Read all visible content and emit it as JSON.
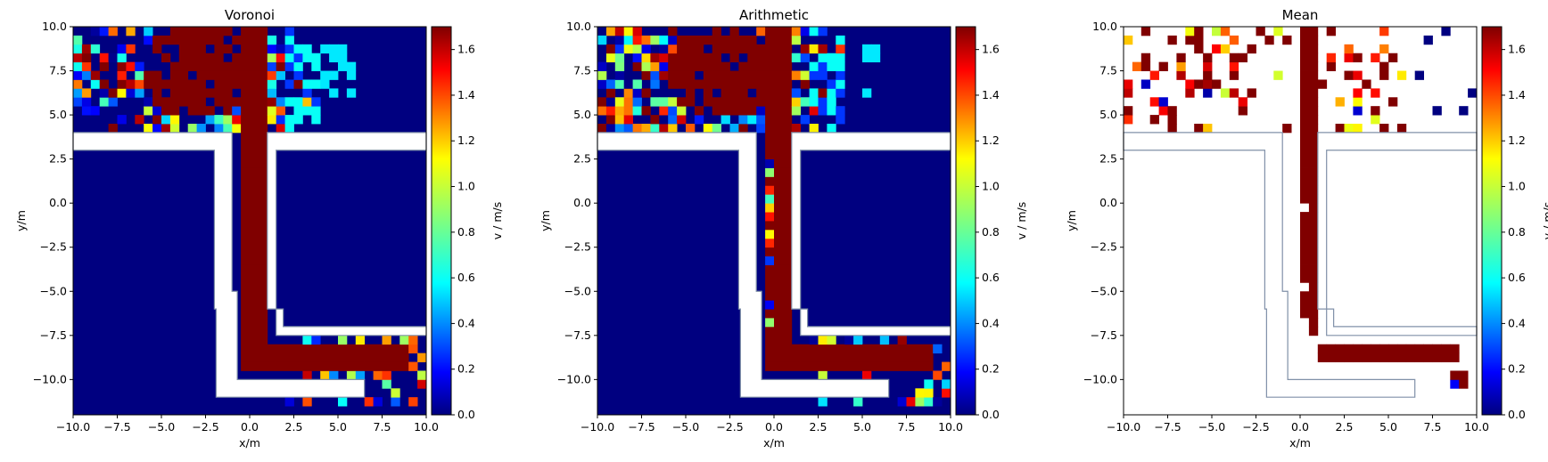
{
  "figure": {
    "colormap": "jet",
    "wall_color": "#8090a8",
    "panels": [
      {
        "title": "Voronoi",
        "xlabel": "x/m",
        "ylabel": "y/m",
        "cbar_label": "v / m/s",
        "mode": "voronoi"
      },
      {
        "title": "Arithmetic",
        "xlabel": "x/m",
        "ylabel": "y/m",
        "cbar_label": "v / m/s",
        "mode": "arithmetic"
      },
      {
        "title": "Mean",
        "xlabel": "x/m",
        "ylabel": "y/m",
        "cbar_label": "v / m/s",
        "mode": "mean"
      }
    ]
  },
  "chart_data": [
    {
      "type": "heatmap",
      "title": "Voronoi",
      "xlabel": "x/m",
      "ylabel": "y/m",
      "xlim": [
        -10,
        10
      ],
      "ylim": [
        -12,
        10
      ],
      "x_ticks": [
        "−10.0",
        "−7.5",
        "−5.0",
        "−2.5",
        "0.0",
        "2.5",
        "5.0",
        "7.5",
        "10.0"
      ],
      "y_ticks": [
        "10.0",
        "7.5",
        "5.0",
        "2.5",
        "0.0",
        "−2.5",
        "−5.0",
        "−7.5",
        "−10.0"
      ],
      "colorbar": {
        "label": "v / m/s",
        "range": [
          0,
          1.7
        ],
        "ticks": [
          "0.0",
          "0.2",
          "0.4",
          "0.6",
          "0.8",
          "1.0",
          "1.2",
          "1.4",
          "1.6"
        ]
      },
      "cell_size_m": 0.5,
      "background_value": 0.0,
      "corridor_value": 1.7,
      "corridor_path": [
        [
          0,
          10
        ],
        [
          0,
          -8.5
        ],
        [
          9,
          -8.5
        ]
      ],
      "corridor_halfwidth_m": 0.75,
      "upper_region_values": "mixed 0.0–1.7, densest near corridor top (y 4–10, x −10 to 4)",
      "lower_region_values": "mixed 0.3–1.7 near x 2–10, y −7.5 to −10.5"
    },
    {
      "type": "heatmap",
      "title": "Arithmetic",
      "xlabel": "x/m",
      "ylabel": "y/m",
      "xlim": [
        -10,
        10
      ],
      "ylim": [
        -12,
        10
      ],
      "x_ticks": [
        "−10.0",
        "−7.5",
        "−5.0",
        "−2.5",
        "0.0",
        "2.5",
        "5.0",
        "7.5",
        "10.0"
      ],
      "y_ticks": [
        "10.0",
        "7.5",
        "5.0",
        "2.5",
        "0.0",
        "−2.5",
        "−5.0",
        "−7.5",
        "−10.0"
      ],
      "colorbar": {
        "label": "v / m/s",
        "range": [
          0,
          1.7
        ],
        "ticks": [
          "0.0",
          "0.2",
          "0.4",
          "0.6",
          "0.8",
          "1.0",
          "1.2",
          "1.4",
          "1.6"
        ]
      },
      "cell_size_m": 0.5,
      "background_value": 0.0,
      "corridor_value": 1.7,
      "corridor_path": [
        [
          0,
          10
        ],
        [
          0,
          -9.0
        ],
        [
          9,
          -9.0
        ]
      ],
      "corridor_halfwidth_m": 0.6
    },
    {
      "type": "heatmap",
      "title": "Mean",
      "xlabel": "x/m",
      "ylabel": "y/m",
      "xlim": [
        -10,
        10
      ],
      "ylim": [
        -12,
        10
      ],
      "x_ticks": [
        "−10.0",
        "−7.5",
        "−5.0",
        "−2.5",
        "0.0",
        "2.5",
        "5.0",
        "7.5",
        "10.0"
      ],
      "y_ticks": [
        "10.0",
        "7.5",
        "5.0",
        "2.5",
        "0.0",
        "−2.5",
        "−5.0",
        "−7.5",
        "−10.0"
      ],
      "colorbar": {
        "label": "v / m/s",
        "range": [
          0,
          1.7
        ],
        "ticks": [
          "0.0",
          "0.2",
          "0.4",
          "0.6",
          "0.8",
          "1.0",
          "1.2",
          "1.4",
          "1.6"
        ]
      },
      "cell_size_m": 0.5,
      "background": "empty (white)",
      "corridor_value": 1.7,
      "sparse_cells": "scattered values in upper region y 4–10; trail along x≈0.5 down to y≈−8, then to x≈9"
    }
  ]
}
